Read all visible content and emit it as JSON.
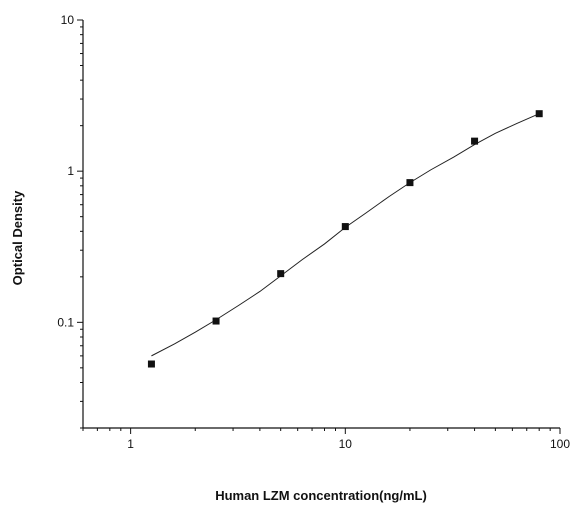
{
  "chart_data": {
    "type": "scatter",
    "title": "",
    "xlabel": "Human LZM concentration(ng/mL)",
    "ylabel": "Optical Density",
    "x_scale": "log",
    "y_scale": "log",
    "xlim": [
      0.6,
      100
    ],
    "ylim": [
      0.02,
      10
    ],
    "x_ticks": [
      1,
      10,
      100
    ],
    "x_tick_labels": [
      "1",
      "10",
      "100"
    ],
    "y_ticks": [
      0.1,
      1,
      10
    ],
    "y_tick_labels": [
      "0.1",
      "1",
      "10"
    ],
    "grid": false,
    "legend": "none",
    "series": [
      {
        "x": [
          1.25,
          2.5,
          5,
          10,
          20,
          40,
          80
        ],
        "y": [
          0.053,
          0.102,
          0.21,
          0.43,
          0.84,
          1.58,
          2.4
        ]
      }
    ],
    "fit_curve": {
      "x": [
        1.25,
        1.6,
        2,
        2.5,
        3.2,
        4,
        5,
        6.3,
        8,
        10,
        12.5,
        16,
        20,
        25,
        32,
        40,
        50,
        63,
        80
      ],
      "y": [
        0.06,
        0.072,
        0.086,
        0.104,
        0.13,
        0.16,
        0.203,
        0.26,
        0.33,
        0.425,
        0.53,
        0.68,
        0.84,
        1.02,
        1.24,
        1.5,
        1.78,
        2.07,
        2.4
      ]
    }
  }
}
